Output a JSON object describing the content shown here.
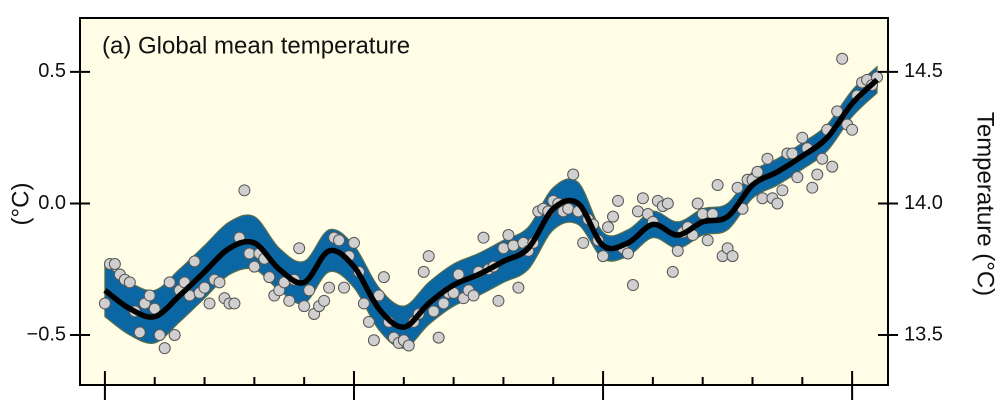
{
  "chart_data": {
    "type": "line",
    "title": "(a) Global mean temperature",
    "ylabel": "(°C)",
    "y2label": "Temperature (°C)",
    "background": "#fffde6",
    "xlim": [
      1845,
      2007.2
    ],
    "xticks": [
      1850,
      1860,
      1870,
      1880,
      1890,
      1900,
      1910,
      1920,
      1930,
      1940,
      1950,
      1960,
      1970,
      1980,
      1990,
      2000
    ],
    "ylim": [
      -0.69,
      0.705
    ],
    "yticks": [
      {
        "value": -0.5,
        "label": "−0.5"
      },
      {
        "value": 0,
        "label": "0.0"
      },
      0.5
    ],
    "y2lim": [
      13.31,
      14.705
    ],
    "y2ticks": [
      13.5,
      {
        "value": 14,
        "label": "14.0"
      },
      14.5
    ],
    "smoothed": {
      "color": "#000000",
      "band_color": "#0b67a3",
      "x": [
        1850,
        1855,
        1860,
        1865,
        1870,
        1875,
        1880,
        1885,
        1890,
        1895,
        1900,
        1905,
        1910,
        1915,
        1920,
        1925,
        1930,
        1935,
        1940,
        1945,
        1950,
        1955,
        1960,
        1965,
        1970,
        1975,
        1980,
        1985,
        1990,
        1995,
        2000,
        2005
      ],
      "values": [
        -0.33,
        -0.4,
        -0.43,
        -0.35,
        -0.26,
        -0.17,
        -0.15,
        -0.25,
        -0.3,
        -0.18,
        -0.24,
        -0.4,
        -0.47,
        -0.38,
        -0.31,
        -0.27,
        -0.22,
        -0.17,
        -0.02,
        0.0,
        -0.16,
        -0.15,
        -0.08,
        -0.12,
        -0.07,
        -0.05,
        0.07,
        0.12,
        0.18,
        0.25,
        0.38,
        0.47
      ],
      "upper": [
        -0.23,
        -0.3,
        -0.33,
        -0.25,
        -0.16,
        -0.07,
        -0.05,
        -0.17,
        -0.22,
        -0.1,
        -0.16,
        -0.32,
        -0.39,
        -0.3,
        -0.23,
        -0.19,
        -0.14,
        -0.09,
        0.06,
        0.08,
        -0.11,
        -0.1,
        -0.03,
        -0.07,
        -0.02,
        0.0,
        0.12,
        0.17,
        0.23,
        0.3,
        0.43,
        0.52
      ],
      "lower": [
        -0.43,
        -0.5,
        -0.53,
        -0.45,
        -0.36,
        -0.27,
        -0.25,
        -0.33,
        -0.38,
        -0.26,
        -0.32,
        -0.48,
        -0.55,
        -0.46,
        -0.39,
        -0.35,
        -0.3,
        -0.25,
        -0.1,
        -0.08,
        -0.21,
        -0.2,
        -0.13,
        -0.17,
        -0.12,
        -0.1,
        0.02,
        0.07,
        0.13,
        0.2,
        0.33,
        0.42
      ]
    },
    "annual": {
      "color": "#cfcfcf",
      "x": [
        1850,
        1851,
        1852,
        1853,
        1854,
        1855,
        1856,
        1857,
        1858,
        1859,
        1860,
        1861,
        1862,
        1863,
        1864,
        1865,
        1866,
        1867,
        1868,
        1869,
        1870,
        1871,
        1872,
        1873,
        1874,
        1875,
        1876,
        1877,
        1878,
        1879,
        1880,
        1881,
        1882,
        1883,
        1884,
        1885,
        1886,
        1887,
        1888,
        1889,
        1890,
        1891,
        1892,
        1893,
        1894,
        1895,
        1896,
        1897,
        1898,
        1899,
        1900,
        1901,
        1902,
        1903,
        1904,
        1905,
        1906,
        1907,
        1908,
        1909,
        1910,
        1911,
        1912,
        1913,
        1914,
        1915,
        1916,
        1917,
        1918,
        1919,
        1920,
        1921,
        1922,
        1923,
        1924,
        1925,
        1926,
        1927,
        1928,
        1929,
        1930,
        1931,
        1932,
        1933,
        1934,
        1935,
        1936,
        1937,
        1938,
        1939,
        1940,
        1941,
        1942,
        1943,
        1944,
        1945,
        1946,
        1947,
        1948,
        1949,
        1950,
        1951,
        1952,
        1953,
        1954,
        1955,
        1956,
        1957,
        1958,
        1959,
        1960,
        1961,
        1962,
        1963,
        1964,
        1965,
        1966,
        1967,
        1968,
        1969,
        1970,
        1971,
        1972,
        1973,
        1974,
        1975,
        1976,
        1977,
        1978,
        1979,
        1980,
        1981,
        1982,
        1983,
        1984,
        1985,
        1986,
        1987,
        1988,
        1989,
        1990,
        1991,
        1992,
        1993,
        1994,
        1995,
        1996,
        1997,
        1998,
        1999,
        2000,
        2001,
        2002,
        2003,
        2004,
        2005
      ],
      "values": [
        -0.38,
        -0.23,
        -0.23,
        -0.27,
        -0.29,
        -0.3,
        -0.41,
        -0.49,
        -0.38,
        -0.35,
        -0.4,
        -0.5,
        -0.55,
        -0.3,
        -0.5,
        -0.33,
        -0.3,
        -0.35,
        -0.22,
        -0.34,
        -0.32,
        -0.38,
        -0.29,
        -0.3,
        -0.36,
        -0.38,
        -0.38,
        -0.13,
        0.05,
        -0.19,
        -0.24,
        -0.19,
        -0.21,
        -0.28,
        -0.35,
        -0.33,
        -0.3,
        -0.37,
        -0.29,
        -0.17,
        -0.39,
        -0.33,
        -0.42,
        -0.39,
        -0.37,
        -0.32,
        -0.13,
        -0.14,
        -0.32,
        -0.2,
        -0.15,
        -0.26,
        -0.38,
        -0.45,
        -0.52,
        -0.35,
        -0.28,
        -0.45,
        -0.51,
        -0.53,
        -0.52,
        -0.54,
        -0.45,
        -0.42,
        -0.26,
        -0.2,
        -0.41,
        -0.51,
        -0.38,
        -0.34,
        -0.34,
        -0.27,
        -0.36,
        -0.33,
        -0.35,
        -0.26,
        -0.13,
        -0.25,
        -0.24,
        -0.37,
        -0.17,
        -0.12,
        -0.16,
        -0.32,
        -0.15,
        -0.18,
        -0.15,
        -0.03,
        -0.02,
        -0.03,
        0.01,
        0.0,
        -0.03,
        -0.02,
        0.11,
        -0.03,
        -0.15,
        -0.06,
        -0.08,
        -0.14,
        -0.2,
        -0.09,
        -0.05,
        0.01,
        -0.17,
        -0.19,
        -0.31,
        -0.03,
        0.02,
        -0.04,
        -0.07,
        0.01,
        -0.01,
        0.0,
        -0.26,
        -0.18,
        -0.11,
        -0.09,
        -0.12,
        0.0,
        -0.04,
        -0.14,
        -0.04,
        0.07,
        -0.2,
        -0.17,
        -0.2,
        0.06,
        -0.02,
        0.09,
        0.09,
        0.12,
        0.02,
        0.17,
        0.02,
        0.0,
        0.05,
        0.19,
        0.19,
        0.1,
        0.25,
        0.21,
        0.06,
        0.11,
        0.17,
        0.28,
        0.14,
        0.35,
        0.55,
        0.3,
        0.28,
        0.41,
        0.46,
        0.47,
        0.45,
        0.48
      ]
    }
  }
}
